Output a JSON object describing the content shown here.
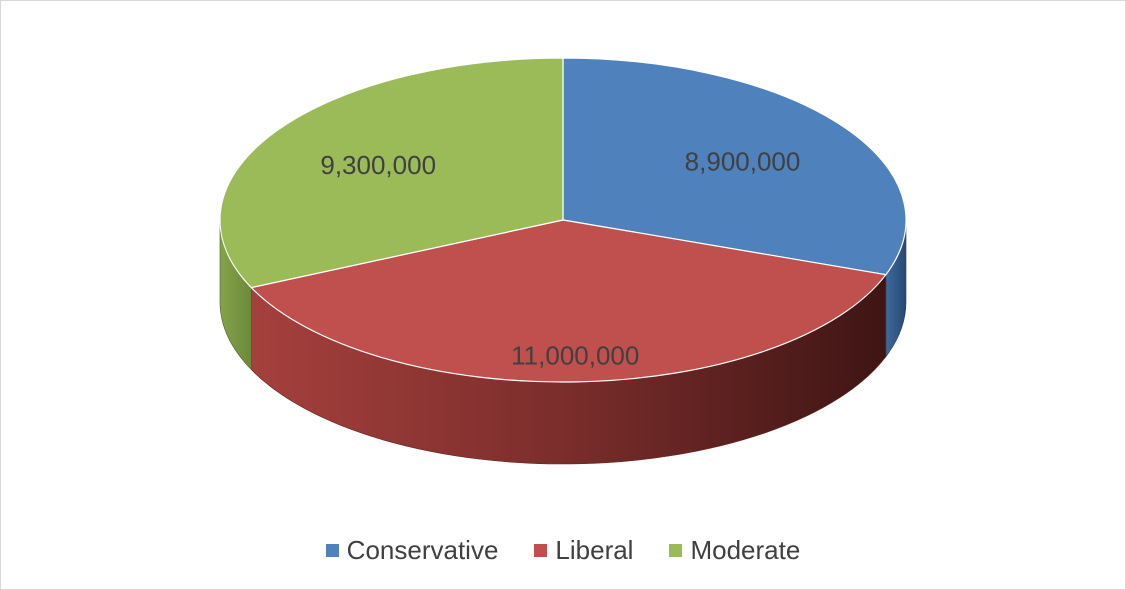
{
  "chart_data": {
    "type": "pie",
    "style": "3d",
    "title": "",
    "legend_position": "bottom",
    "categories": [
      "Conservative",
      "Liberal",
      "Moderate"
    ],
    "values": [
      8900000,
      11000000,
      9300000
    ],
    "labels": [
      "8,900,000",
      "11,000,000",
      "9,300,000"
    ],
    "colors": [
      "#4f81bd",
      "#c0504d",
      "#9bbb59"
    ]
  }
}
